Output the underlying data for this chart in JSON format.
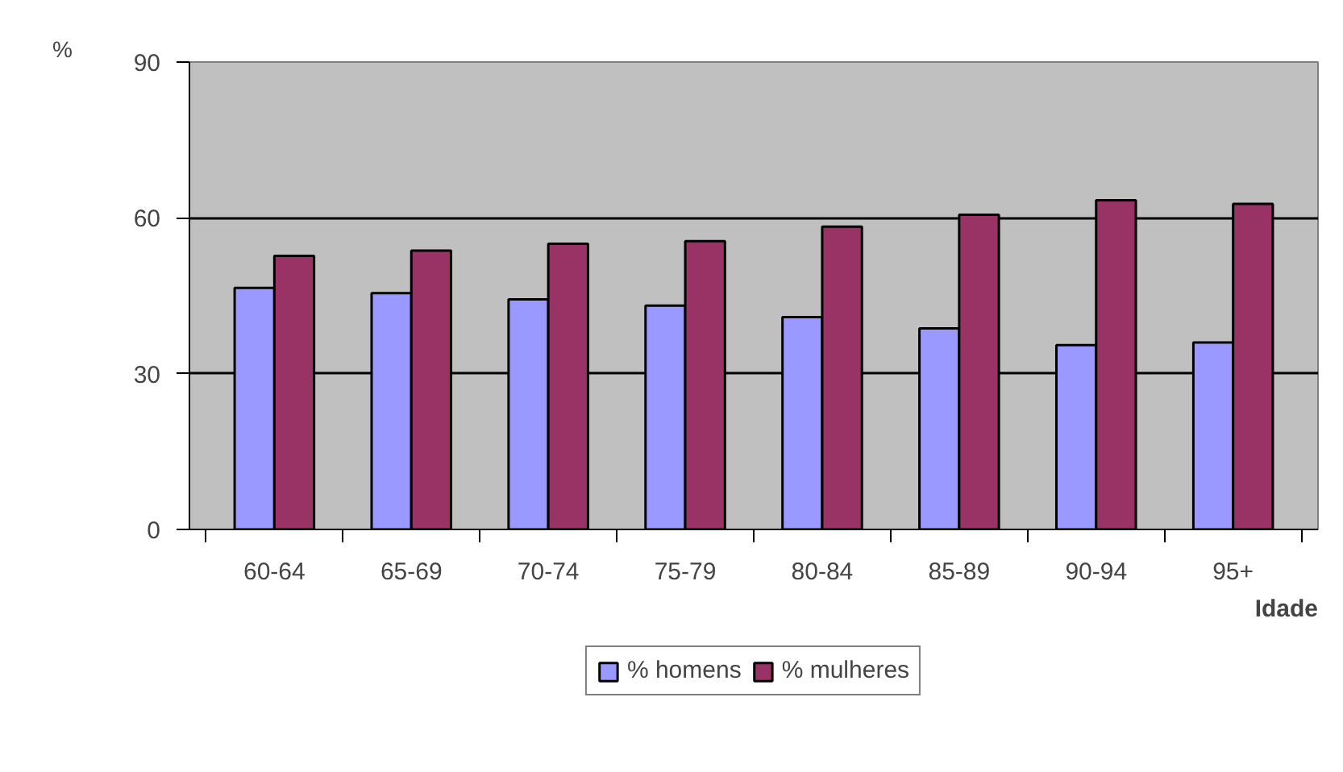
{
  "chart_data": {
    "type": "bar",
    "ylabel": "%",
    "xlabel": "Idade",
    "categories": [
      "60-64",
      "65-69",
      "70-74",
      "75-79",
      "80-84",
      "85-89",
      "90-94",
      "95+"
    ],
    "series": [
      {
        "name": "% homens",
        "color": "#9999ff",
        "values": [
          46.5,
          45.5,
          44.3,
          43.1,
          40.9,
          38.7,
          35.5,
          36.0
        ]
      },
      {
        "name": "% mulheres",
        "color": "#993366",
        "values": [
          52.7,
          53.7,
          55.0,
          55.5,
          58.3,
          60.6,
          63.4,
          62.7
        ]
      }
    ],
    "ylim": [
      0,
      90
    ],
    "yticks": [
      0,
      30,
      60,
      90
    ],
    "grid": "y",
    "legend": "bottom"
  }
}
